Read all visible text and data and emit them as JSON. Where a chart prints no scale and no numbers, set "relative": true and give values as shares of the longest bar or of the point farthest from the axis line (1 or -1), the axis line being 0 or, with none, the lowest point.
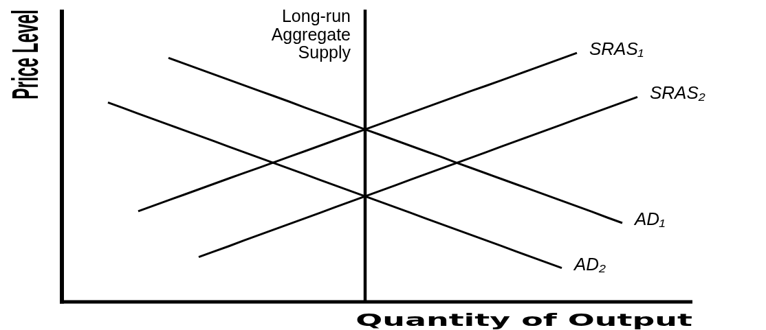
{
  "chart_data": {
    "type": "line",
    "xlabel": "Quantity of Output",
    "ylabel": "Price Level",
    "relative": true,
    "annotations": [
      "Long-run Aggregate Supply"
    ],
    "categories": [
      null,
      null,
      null,
      null,
      null,
      null,
      null,
      null,
      null,
      null,
      null,
      null,
      null,
      null,
      null,
      null,
      null,
      null,
      null,
      null,
      null,
      null,
      null,
      null,
      null,
      null,
      null,
      null,
      null,
      null,
      null,
      null,
      null,
      null,
      null,
      null
    ],
    "series": [
      {
        "name": "SRAS₁",
        "color": "#000000",
        "values": [
          null,
          null,
          0.364,
          0.386,
          0.408,
          0.43,
          0.452,
          0.474,
          0.496,
          0.518,
          0.539,
          0.561,
          0.583,
          0.605,
          0.627,
          0.649,
          0.671,
          0.693,
          0.715,
          0.737,
          0.759,
          0.781,
          0.803,
          0.825,
          0.847,
          0.868,
          0.89,
          0.912,
          0.934,
          0.956,
          0.978,
          1.0,
          null,
          null,
          null,
          null
        ]
      },
      {
        "name": "SRAS₂",
        "color": "#000000",
        "values": [
          null,
          null,
          null,
          null,
          null,
          null,
          0.18,
          0.202,
          0.224,
          0.247,
          0.269,
          0.291,
          0.313,
          0.335,
          0.357,
          0.38,
          0.402,
          0.424,
          0.446,
          0.468,
          0.491,
          0.513,
          0.535,
          0.557,
          0.579,
          0.601,
          0.624,
          0.646,
          0.668,
          0.69,
          0.712,
          0.735,
          0.757,
          0.779,
          0.801,
          0.823
        ]
      },
      {
        "name": "AD₁",
        "color": "#000000",
        "values": [
          null,
          null,
          null,
          null,
          0.98,
          0.958,
          0.936,
          0.914,
          0.892,
          0.87,
          0.848,
          0.826,
          0.804,
          0.781,
          0.759,
          0.737,
          0.715,
          0.693,
          0.671,
          0.649,
          0.627,
          0.605,
          0.583,
          0.56,
          0.538,
          0.516,
          0.494,
          0.472,
          0.45,
          0.428,
          0.406,
          0.384,
          0.362,
          0.339,
          0.317,
          null
        ]
      },
      {
        "name": "AD₂",
        "color": "#000000",
        "values": [
          0.801,
          0.779,
          0.756,
          0.734,
          0.712,
          0.69,
          0.668,
          0.646,
          0.623,
          0.601,
          0.579,
          0.557,
          0.535,
          0.513,
          0.49,
          0.468,
          0.446,
          0.424,
          0.402,
          0.38,
          0.358,
          0.335,
          0.313,
          0.291,
          0.269,
          0.247,
          0.225,
          0.202,
          0.18,
          0.158,
          0.136,
          null,
          null,
          null,
          null,
          null
        ]
      }
    ]
  }
}
